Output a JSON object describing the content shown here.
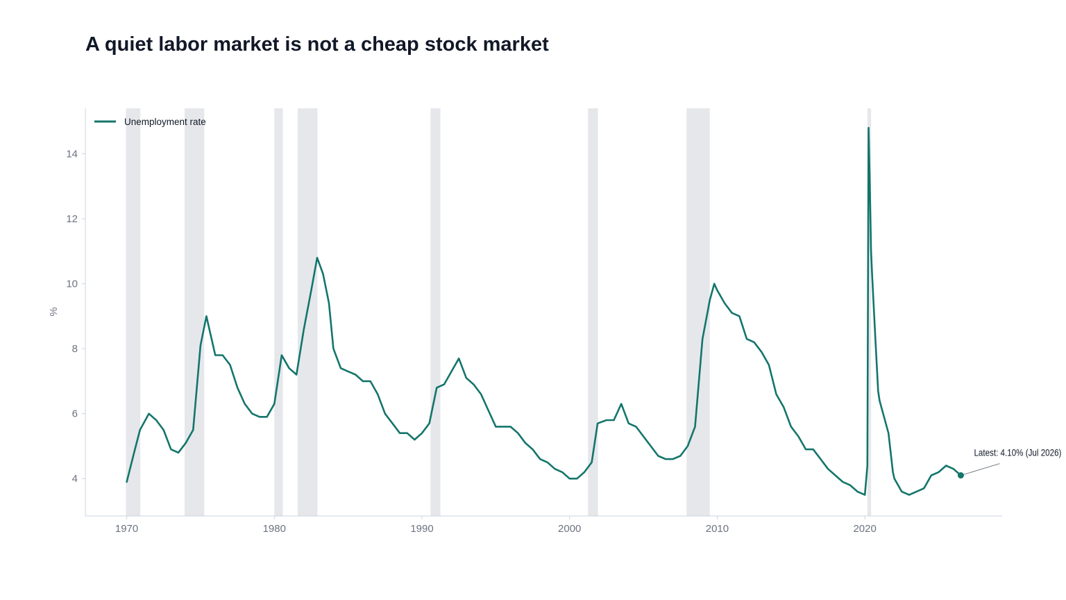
{
  "chart_data": {
    "type": "line",
    "title": "A quiet labor market is not a cheap stock market",
    "xlabel": "",
    "ylabel": "%",
    "xlim": [
      1967.2,
      2029.3
    ],
    "ylim": [
      2.85,
      15.4
    ],
    "x_ticks": [
      1970,
      1980,
      1990,
      2000,
      2010,
      2020
    ],
    "y_ticks": [
      4,
      6,
      8,
      10,
      12,
      14
    ],
    "grid": false,
    "legend": {
      "position": "top-left",
      "entries": [
        "Unemployment rate"
      ]
    },
    "colors": {
      "line": "#13756b",
      "recession": "#e5e7eb",
      "axis": "#cbd5e1",
      "tick_text": "#6b7280",
      "title": "#111827"
    },
    "recessions": [
      [
        1969.95,
        1970.92
      ],
      [
        1973.92,
        1975.25
      ],
      [
        1980.0,
        1980.58
      ],
      [
        1981.58,
        1982.92
      ],
      [
        1990.58,
        1991.25
      ],
      [
        2001.25,
        2001.92
      ],
      [
        2007.92,
        2009.5
      ],
      [
        2020.17,
        2020.42
      ]
    ],
    "series": [
      {
        "name": "Unemployment rate",
        "x": [
          1970.0,
          1970.5,
          1970.9,
          1971.5,
          1972.0,
          1972.5,
          1973.0,
          1973.5,
          1974.0,
          1974.5,
          1975.0,
          1975.4,
          1976.0,
          1976.5,
          1977.0,
          1977.5,
          1978.0,
          1978.5,
          1979.0,
          1979.5,
          1980.0,
          1980.5,
          1981.0,
          1981.5,
          1982.0,
          1982.5,
          1982.9,
          1983.3,
          1983.7,
          1984.0,
          1984.5,
          1985.0,
          1985.5,
          1986.0,
          1986.5,
          1987.0,
          1987.5,
          1988.0,
          1988.5,
          1989.0,
          1989.5,
          1990.0,
          1990.5,
          1991.0,
          1991.5,
          1992.0,
          1992.5,
          1993.0,
          1993.5,
          1994.0,
          1994.5,
          1995.0,
          1995.5,
          1996.0,
          1996.5,
          1997.0,
          1997.5,
          1998.0,
          1998.5,
          1999.0,
          1999.5,
          2000.0,
          2000.5,
          2001.0,
          2001.5,
          2001.9,
          2002.5,
          2003.0,
          2003.5,
          2004.0,
          2004.5,
          2005.0,
          2005.5,
          2006.0,
          2006.5,
          2007.0,
          2007.5,
          2008.0,
          2008.5,
          2009.0,
          2009.5,
          2009.8,
          2010.0,
          2010.5,
          2011.0,
          2011.5,
          2012.0,
          2012.5,
          2013.0,
          2013.5,
          2014.0,
          2014.5,
          2015.0,
          2015.5,
          2016.0,
          2016.5,
          2017.0,
          2017.5,
          2018.0,
          2018.5,
          2019.0,
          2019.5,
          2020.0,
          2020.17,
          2020.25,
          2020.33,
          2020.42,
          2020.5,
          2020.7,
          2020.9,
          2021.0,
          2021.3,
          2021.6,
          2021.9,
          2022.0,
          2022.5,
          2023.0,
          2023.5,
          2024.0,
          2024.5,
          2025.0,
          2025.5,
          2026.0,
          2026.5
        ],
        "values": [
          3.9,
          4.8,
          5.5,
          6.0,
          5.8,
          5.5,
          4.9,
          4.8,
          5.1,
          5.5,
          8.1,
          9.0,
          7.8,
          7.8,
          7.5,
          6.8,
          6.3,
          6.0,
          5.9,
          5.9,
          6.3,
          7.8,
          7.4,
          7.2,
          8.6,
          9.8,
          10.8,
          10.3,
          9.4,
          8.0,
          7.4,
          7.3,
          7.2,
          7.0,
          7.0,
          6.6,
          6.0,
          5.7,
          5.4,
          5.4,
          5.2,
          5.4,
          5.7,
          6.8,
          6.9,
          7.3,
          7.7,
          7.1,
          6.9,
          6.6,
          6.1,
          5.6,
          5.6,
          5.6,
          5.4,
          5.1,
          4.9,
          4.6,
          4.5,
          4.3,
          4.2,
          4.0,
          4.0,
          4.2,
          4.5,
          5.7,
          5.8,
          5.8,
          6.3,
          5.7,
          5.6,
          5.3,
          5.0,
          4.7,
          4.6,
          4.6,
          4.7,
          5.0,
          5.6,
          8.3,
          9.5,
          10.0,
          9.8,
          9.4,
          9.1,
          9.0,
          8.3,
          8.2,
          7.9,
          7.5,
          6.6,
          6.2,
          5.6,
          5.3,
          4.9,
          4.9,
          4.6,
          4.3,
          4.1,
          3.9,
          3.8,
          3.6,
          3.5,
          4.4,
          14.8,
          13.2,
          11.0,
          10.2,
          8.4,
          6.7,
          6.4,
          5.9,
          5.4,
          4.2,
          4.0,
          3.6,
          3.5,
          3.6,
          3.7,
          4.1,
          4.2,
          4.4,
          4.3,
          4.1
        ]
      }
    ],
    "annotation": {
      "text": "Latest: 4.10%  (Jul 2026)",
      "x": 2026.5,
      "y": 4.1
    }
  }
}
